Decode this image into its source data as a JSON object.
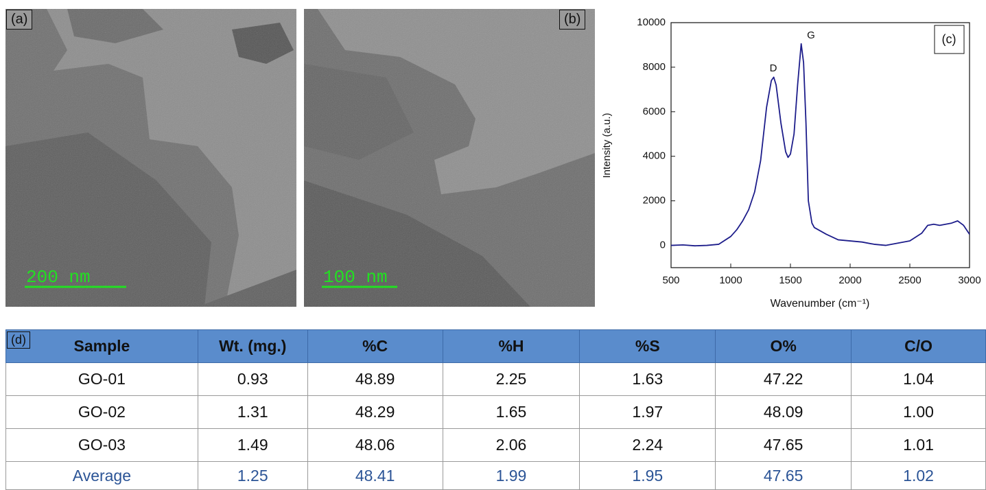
{
  "panels": [
    {
      "label": "(a)",
      "scale_bar": "200 nm"
    },
    {
      "label": "(b)",
      "scale_bar": "100 nm"
    }
  ],
  "chart_data": {
    "type": "line",
    "panel_label": "(c)",
    "x_label": "Wavenumber (cm⁻¹)",
    "y_label": "Intensity (a.u.)",
    "annotations": [
      "D",
      "G"
    ],
    "x": [
      500,
      600,
      700,
      800,
      900,
      1000,
      1050,
      1100,
      1150,
      1200,
      1250,
      1300,
      1340,
      1360,
      1380,
      1420,
      1460,
      1480,
      1500,
      1530,
      1560,
      1590,
      1610,
      1630,
      1650,
      1680,
      1700,
      1800,
      1900,
      2000,
      2100,
      2200,
      2300,
      2400,
      2500,
      2600,
      2650,
      2700,
      2750,
      2800,
      2850,
      2900,
      2950,
      3000
    ],
    "values": [
      0,
      20,
      -20,
      0,
      50,
      400,
      700,
      1100,
      1600,
      2400,
      3800,
      6200,
      7400,
      7550,
      7200,
      5500,
      4200,
      3950,
      4100,
      5000,
      7200,
      9050,
      8200,
      5500,
      2000,
      1000,
      800,
      500,
      250,
      200,
      150,
      50,
      0,
      100,
      200,
      550,
      900,
      950,
      900,
      950,
      1000,
      1100,
      900,
      500
    ],
    "color": "#1c1c8a",
    "xlim": [
      500,
      3000
    ],
    "xticks": [
      500,
      1000,
      1500,
      2000,
      2500,
      3000
    ],
    "ylim": [
      -1000,
      10000
    ],
    "yticks": [
      0,
      2000,
      4000,
      6000,
      8000,
      10000
    ],
    "grid": false
  },
  "table": {
    "panel_label": "(d)",
    "header": [
      "Sample",
      "Wt. (mg.)",
      "%C",
      "%H",
      "%S",
      "O%",
      "C/O"
    ],
    "rows": [
      [
        "GO-01",
        "0.93",
        "48.89",
        "2.25",
        "1.63",
        "47.22",
        "1.04"
      ],
      [
        "GO-02",
        "1.31",
        "48.29",
        "1.65",
        "1.97",
        "48.09",
        "1.00"
      ],
      [
        "GO-03",
        "1.49",
        "48.06",
        "2.06",
        "2.24",
        "47.65",
        "1.01"
      ],
      [
        "Average",
        "1.25",
        "48.41",
        "1.99",
        "1.95",
        "47.65",
        "1.02"
      ]
    ]
  }
}
